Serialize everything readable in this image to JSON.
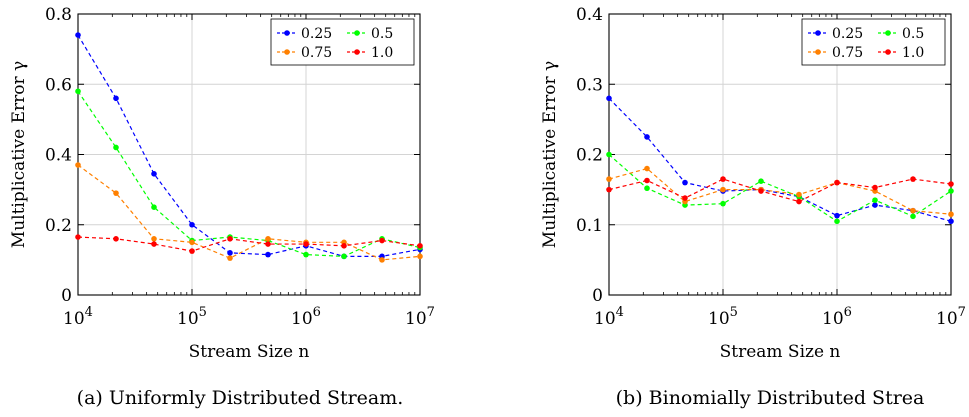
{
  "chart_data": [
    {
      "type": "line",
      "xscale": "log",
      "xlabel": "Stream Size n",
      "ylabel": "Multiplicative Error γ",
      "xlim": [
        10000,
        10000000
      ],
      "ylim": [
        0,
        0.8
      ],
      "yticks": [
        0,
        0.2,
        0.4,
        0.6,
        0.8
      ],
      "ytick_labels": [
        "0",
        "0.2",
        "0.4",
        "0.6",
        "0.8"
      ],
      "xticks": [
        10000,
        100000,
        1000000,
        10000000
      ],
      "xtick_labels": [
        {
          "base": "10",
          "exp": "4"
        },
        {
          "base": "10",
          "exp": "5"
        },
        {
          "base": "10",
          "exp": "6"
        },
        {
          "base": "10",
          "exp": "7"
        }
      ],
      "grid": true,
      "legend_position": "top-right",
      "caption": "(a) Uniformly Distributed Stream.",
      "x": [
        10000,
        21544,
        46416,
        100000,
        215443,
        464159,
        1000000,
        2154435,
        4641589,
        10000000
      ],
      "series": [
        {
          "name": "0.25",
          "color": "#0000ff",
          "values": [
            0.74,
            0.56,
            0.345,
            0.2,
            0.12,
            0.115,
            0.14,
            0.11,
            0.11,
            0.13
          ]
        },
        {
          "name": "0.5",
          "color": "#00ff00",
          "values": [
            0.58,
            0.42,
            0.25,
            0.155,
            0.165,
            0.155,
            0.115,
            0.11,
            0.16,
            0.135
          ]
        },
        {
          "name": "0.75",
          "color": "#ff8000",
          "values": [
            0.37,
            0.29,
            0.16,
            0.15,
            0.105,
            0.16,
            0.15,
            0.15,
            0.1,
            0.11
          ]
        },
        {
          "name": "1.0",
          "color": "#ff0000",
          "values": [
            0.165,
            0.16,
            0.145,
            0.125,
            0.16,
            0.145,
            0.145,
            0.14,
            0.155,
            0.14
          ]
        }
      ]
    },
    {
      "type": "line",
      "xscale": "log",
      "xlabel": "Stream Size n",
      "ylabel": "Multiplicative Error γ",
      "xlim": [
        10000,
        10000000
      ],
      "ylim": [
        0,
        0.4
      ],
      "yticks": [
        0,
        0.1,
        0.2,
        0.3,
        0.4
      ],
      "ytick_labels": [
        "0",
        "0.1",
        "0.2",
        "0.3",
        "0.4"
      ],
      "xticks": [
        10000,
        100000,
        1000000,
        10000000
      ],
      "xtick_labels": [
        {
          "base": "10",
          "exp": "4"
        },
        {
          "base": "10",
          "exp": "5"
        },
        {
          "base": "10",
          "exp": "6"
        },
        {
          "base": "10",
          "exp": "7"
        }
      ],
      "grid": true,
      "legend_position": "top-right",
      "caption": "(b) Binomially Distributed Strea",
      "x": [
        10000,
        21544,
        46416,
        100000,
        215443,
        464159,
        1000000,
        2154435,
        4641589,
        10000000
      ],
      "series": [
        {
          "name": "0.25",
          "color": "#0000ff",
          "values": [
            0.28,
            0.225,
            0.16,
            0.148,
            0.15,
            0.14,
            0.113,
            0.128,
            0.12,
            0.105
          ]
        },
        {
          "name": "0.5",
          "color": "#00ff00",
          "values": [
            0.2,
            0.152,
            0.128,
            0.13,
            0.162,
            0.14,
            0.105,
            0.135,
            0.112,
            0.148
          ]
        },
        {
          "name": "0.75",
          "color": "#ff8000",
          "values": [
            0.165,
            0.18,
            0.133,
            0.15,
            0.15,
            0.143,
            0.16,
            0.148,
            0.12,
            0.115
          ]
        },
        {
          "name": "1.0",
          "color": "#ff0000",
          "values": [
            0.15,
            0.163,
            0.138,
            0.165,
            0.148,
            0.133,
            0.16,
            0.153,
            0.165,
            0.158
          ]
        }
      ]
    }
  ]
}
